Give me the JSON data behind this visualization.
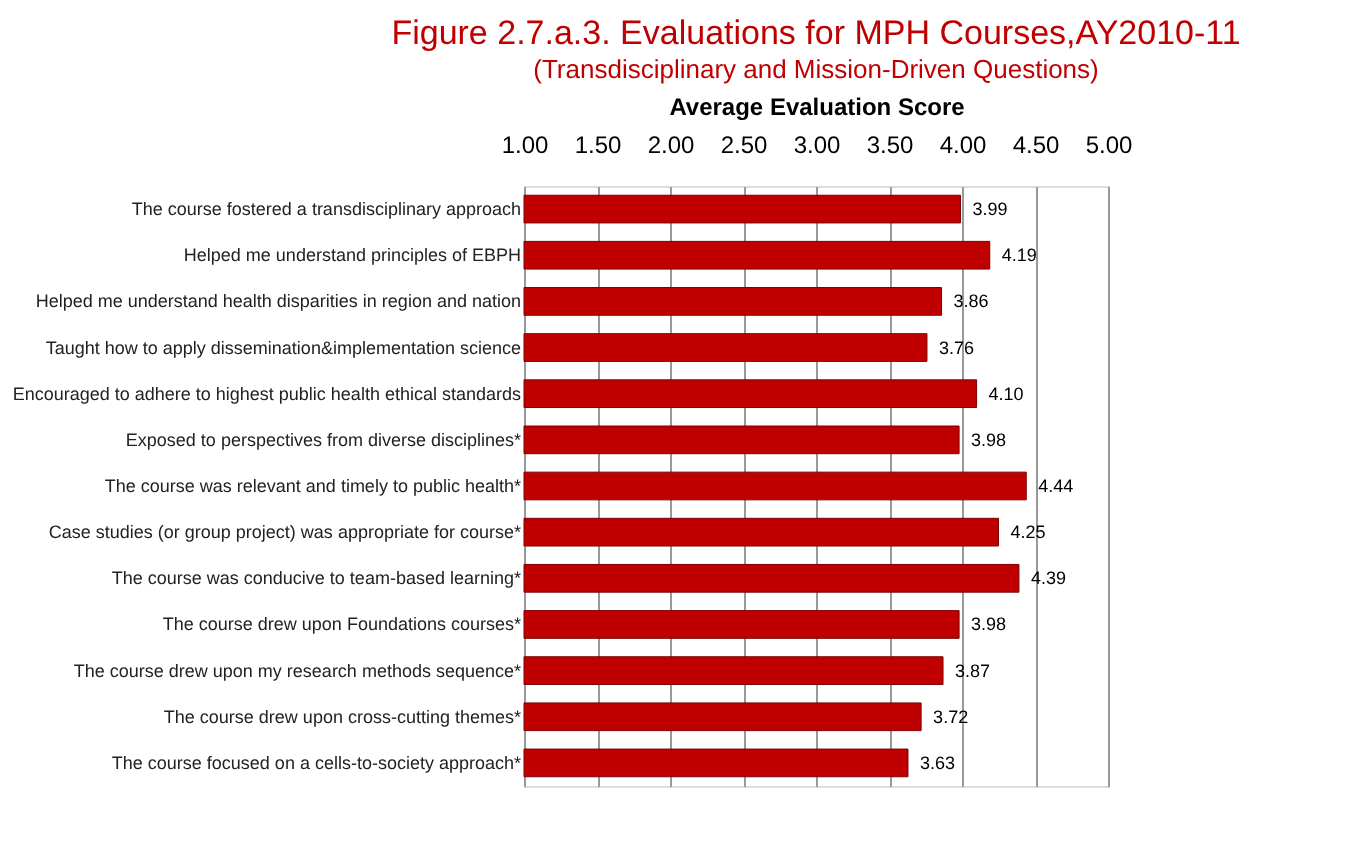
{
  "chart_data": {
    "type": "bar",
    "orientation": "horizontal",
    "title": "Figure 2.7.a.3. Evaluations for MPH Courses,AY2010-11",
    "subtitle": "(Transdisciplinary and Mission-Driven Questions)",
    "xlabel": "Average Evaluation Score",
    "categories": [
      "The course fostered a transdisciplinary approach",
      "Helped me understand principles of EBPH",
      "Helped me understand health disparities in region and nation",
      "Taught how to apply dissemination&implementation science",
      "Encouraged to adhere to highest public health ethical standards",
      "Exposed to perspectives from diverse disciplines*",
      "The course was relevant and timely to public health*",
      "Case studies  (or group project) was appropriate for course*",
      "The course was conducive to team-based learning*",
      "The course drew upon Foundations courses*",
      "The course drew upon my research methods sequence*",
      "The course drew upon cross-cutting themes*",
      "The course focused on a cells-to-society approach*"
    ],
    "values": [
      3.99,
      4.19,
      3.86,
      3.76,
      4.1,
      3.98,
      4.44,
      4.25,
      4.39,
      3.98,
      3.87,
      3.72,
      3.63
    ],
    "color": "#c00000",
    "xlim": [
      1.0,
      5.0
    ],
    "xticks": [
      {
        "value": 1,
        "label": "1.00"
      },
      {
        "value": 1.5,
        "label": "1.50"
      },
      {
        "value": 2,
        "label": "2.00"
      },
      {
        "value": 2.5,
        "label": "2.50"
      },
      {
        "value": 3,
        "label": "3.00"
      },
      {
        "value": 3.5,
        "label": "3.50"
      },
      {
        "value": 4,
        "label": "4.00"
      },
      {
        "value": 4.5,
        "label": "4.50"
      },
      {
        "value": 5,
        "label": "5.00"
      }
    ],
    "value_labels": [
      "3.99",
      "4.19",
      "3.86",
      "3.76",
      "4.10",
      "3.98",
      "4.44",
      "4.25",
      "4.39",
      "3.98",
      "3.87",
      "3.72",
      "3.63"
    ],
    "grid": "x"
  }
}
